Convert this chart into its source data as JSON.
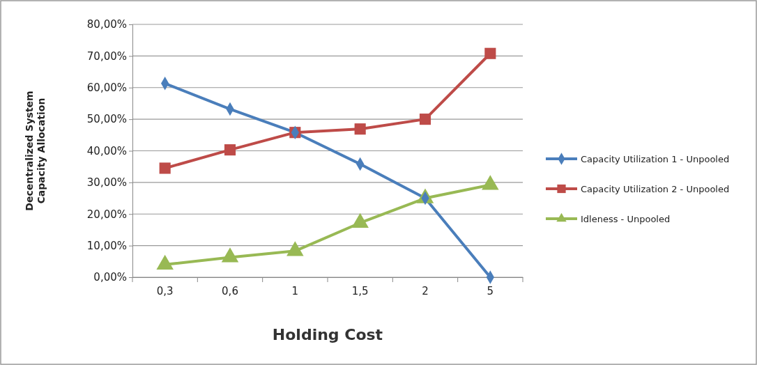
{
  "chart_data": {
    "type": "line",
    "xlabel": "Holding Cost",
    "ylabel": "Decentralized System\nCapacity Allocation",
    "categories": [
      "0,3",
      "0,6",
      "1",
      "1,5",
      "2",
      "5"
    ],
    "series": [
      {
        "name": "Capacity Utilization 1 - Unpooled",
        "color": "#4a7ebb",
        "marker": "diamond",
        "values": [
          61.3,
          53.2,
          45.8,
          35.8,
          25,
          0
        ]
      },
      {
        "name": "Capacity Utilization 2 - Unpooled",
        "color": "#be4b48",
        "marker": "square",
        "values": [
          34.5,
          40.3,
          45.8,
          46.9,
          50,
          70.8
        ]
      },
      {
        "name": "Idleness - Unpooled",
        "color": "#98b954",
        "marker": "triangle",
        "values": [
          4,
          6.3,
          8.3,
          17.2,
          25,
          29.2
        ]
      }
    ],
    "ylim": [
      0,
      80
    ],
    "yticks": [
      {
        "value": 0,
        "label": "0,00%"
      },
      {
        "value": 10,
        "label": "10,00%"
      },
      {
        "value": 20,
        "label": "20,00%"
      },
      {
        "value": 30,
        "label": "30,00%"
      },
      {
        "value": 40,
        "label": "40,00%"
      },
      {
        "value": 50,
        "label": "50,00%"
      },
      {
        "value": 60,
        "label": "60,00%"
      },
      {
        "value": 70,
        "label": "70,00%"
      },
      {
        "value": 80,
        "label": "80,00%"
      }
    ],
    "grid": "y",
    "legend": "right",
    "line_style": "solid"
  }
}
